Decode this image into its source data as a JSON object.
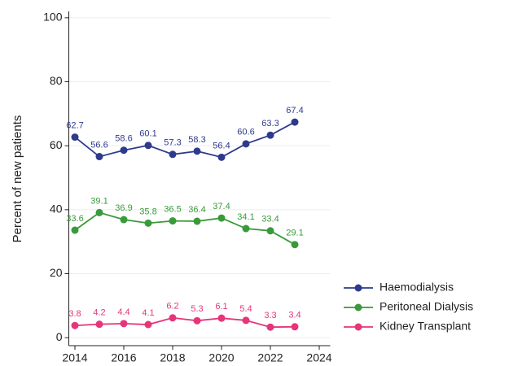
{
  "chart_data": {
    "type": "line",
    "y_label": "Percent of new patients",
    "x": [
      2014,
      2015,
      2016,
      2017,
      2018,
      2019,
      2020,
      2021,
      2022,
      2023
    ],
    "xlim": [
      2013.75,
      2024.45
    ],
    "xticks": [
      2014,
      2016,
      2018,
      2020,
      2022,
      2024
    ],
    "ylim": [
      -2.5,
      102
    ],
    "yticks": [
      0,
      20,
      40,
      60,
      80,
      100
    ],
    "grid": true,
    "legend": "lower right outside",
    "series": [
      {
        "name": "Haemodialysis",
        "color": "#2e3a8c",
        "values": [
          62.7,
          56.6,
          58.6,
          60.1,
          57.3,
          58.3,
          56.4,
          60.6,
          63.3,
          67.4
        ]
      },
      {
        "name": "Peritoneal Dialysis",
        "color": "#3a9a3a",
        "values": [
          33.6,
          39.1,
          36.9,
          35.8,
          36.5,
          36.4,
          37.4,
          34.1,
          33.4,
          29.1
        ]
      },
      {
        "name": "Kidney Transplant",
        "color": "#e6357a",
        "values": [
          3.8,
          4.2,
          4.4,
          4.1,
          6.2,
          5.3,
          6.1,
          5.4,
          3.3,
          3.4
        ]
      }
    ]
  }
}
